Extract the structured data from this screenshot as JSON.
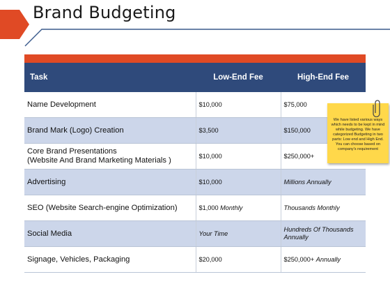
{
  "title": "Brand Budgeting",
  "colors": {
    "accent": "#e04a25",
    "header": "#2f4a7b",
    "row_shade": "#ccd6ea",
    "sticky": "#ffd84a"
  },
  "table": {
    "headers": [
      "Task",
      "Low-End Fee",
      "High-End Fee"
    ],
    "rows": [
      {
        "task": "Name Development",
        "low": "$10,000",
        "high": "$75,000"
      },
      {
        "task": "Brand Mark (Logo) Creation",
        "low": "$3,500",
        "high": "$150,000"
      },
      {
        "task": "Core Brand Presentations\n(Website And Brand Marketing Materials )",
        "low": "$10,000",
        "high": "$250,000+"
      },
      {
        "task": "Advertising",
        "low": "$10,000",
        "high": "Millions Annually"
      },
      {
        "task": "SEO (Website Search-engine Optimization)",
        "low": "$1,000 Monthly",
        "high": "Thousands Monthly"
      },
      {
        "task": "Social Media",
        "low": "Your Time",
        "high": "Hundreds Of Thousands Annually"
      },
      {
        "task": "Signage, Vehicles, Packaging",
        "low": "$20,000",
        "high": "$250,000+ Annually"
      }
    ]
  },
  "note": {
    "text": "We have listed various ways which needs to be kept in mind while budgeting. We have categorized Budgeting in two parts: Low end and High End. You can choose based on company's requirement",
    "icon": "paperclip-icon"
  }
}
